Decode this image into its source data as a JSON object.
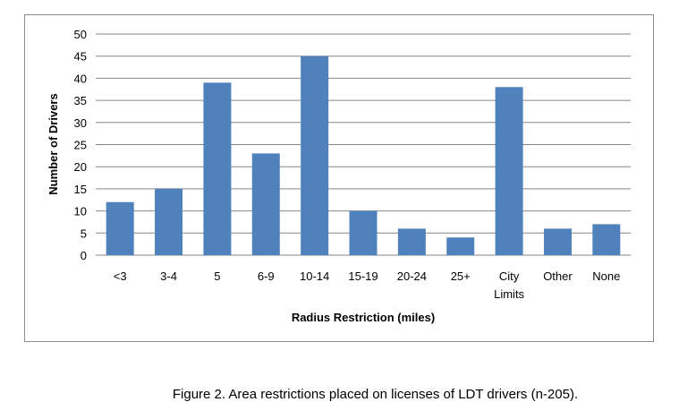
{
  "chart_data": {
    "type": "bar",
    "categories": [
      [
        "<3"
      ],
      [
        "3-4"
      ],
      [
        "5"
      ],
      [
        "6-9"
      ],
      [
        "10-14"
      ],
      [
        "15-19"
      ],
      [
        "20-24"
      ],
      [
        "25+"
      ],
      [
        "City",
        "Limits"
      ],
      [
        "Other"
      ],
      [
        "None"
      ]
    ],
    "values": [
      12,
      15,
      39,
      23,
      45,
      10,
      6,
      4,
      38,
      6,
      7
    ],
    "ylim": [
      0,
      50
    ],
    "yticks": [
      0,
      5,
      10,
      15,
      20,
      25,
      30,
      35,
      40,
      45,
      50
    ],
    "xlabel": "Radius Restriction (miles)",
    "ylabel": "Number of Drivers",
    "grid": true,
    "bar_color": "#4f81bd",
    "grid_color": "#868686"
  },
  "caption": "Figure 2.  Area restrictions placed on licenses of LDT drivers (n-205)."
}
